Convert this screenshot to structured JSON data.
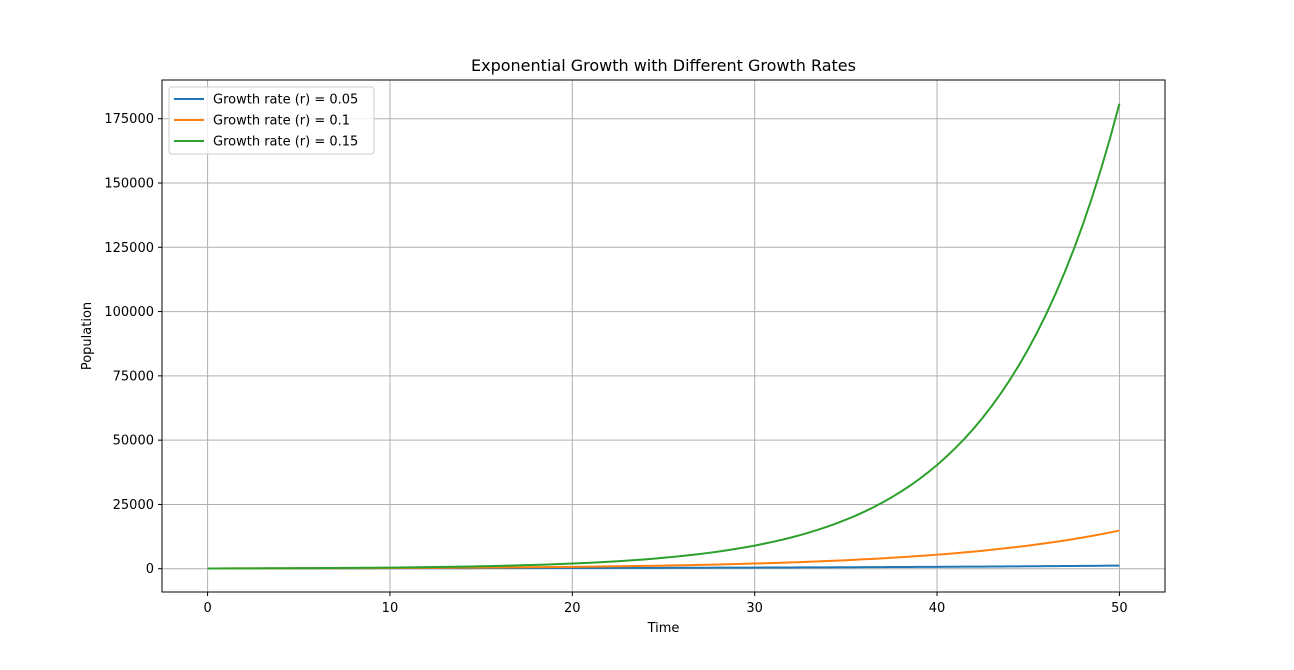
{
  "chart_data": {
    "type": "line",
    "title": "Exponential Growth with Different Growth Rates",
    "xlabel": "Time",
    "ylabel": "Population",
    "xlim": [
      -2.5,
      52.5
    ],
    "ylim": [
      -9050,
      190050
    ],
    "xticks": [
      0,
      10,
      20,
      30,
      40,
      50
    ],
    "yticks": [
      0,
      25000,
      50000,
      75000,
      100000,
      125000,
      150000,
      175000
    ],
    "grid": true,
    "legend_position": "upper left",
    "x": [
      0,
      5,
      10,
      15,
      20,
      25,
      30,
      35,
      40,
      45,
      50
    ],
    "series": [
      {
        "name": "Growth rate (r) = 0.05",
        "color": "#1f77b4",
        "values": [
          100,
          128,
          165,
          212,
          272,
          349,
          448,
          575,
          739,
          949,
          1218
        ]
      },
      {
        "name": "Growth rate (r) = 0.1",
        "color": "#ff7f0e",
        "values": [
          100,
          165,
          272,
          448,
          739,
          1218,
          2009,
          3312,
          5460,
          9002,
          14841
        ]
      },
      {
        "name": "Growth rate (r) = 0.15",
        "color": "#2ca02c",
        "values": [
          100,
          212,
          449,
          949,
          2009,
          4252,
          9002,
          19056,
          40343,
          85408,
          180804
        ]
      }
    ]
  }
}
